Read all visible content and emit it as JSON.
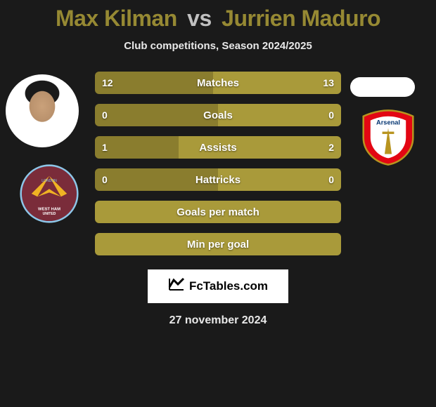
{
  "title": {
    "player1": "Max Kilman",
    "vs": "vs",
    "player2": "Jurrien Maduro",
    "player1_color": "#968933",
    "player2_color": "#968933"
  },
  "subtitle": "Club competitions, Season 2024/2025",
  "club1": {
    "name": "West Ham United",
    "primary": "#7a2c3a",
    "secondary": "#8dc6e8",
    "accent": "#f0b323"
  },
  "club2": {
    "name": "Arsenal",
    "primary": "#e30613",
    "secondary": "#ffffff",
    "accent": "#063672"
  },
  "stats_style": {
    "player1_color": "#8a7d2e",
    "player2_color": "#a99a3a",
    "neutral_color": "#a99a3a",
    "label_color": "#ffffff"
  },
  "stats": [
    {
      "label": "Matches",
      "p1": "12",
      "p2": "13",
      "p1_width_pct": 48
    },
    {
      "label": "Goals",
      "p1": "0",
      "p2": "0",
      "p1_width_pct": 50
    },
    {
      "label": "Assists",
      "p1": "1",
      "p2": "2",
      "p1_width_pct": 34
    },
    {
      "label": "Hattricks",
      "p1": "0",
      "p2": "0",
      "p1_width_pct": 50
    },
    {
      "label": "Goals per match",
      "p1": "",
      "p2": "",
      "p1_width_pct": 0
    },
    {
      "label": "Min per goal",
      "p1": "",
      "p2": "",
      "p1_width_pct": 0
    }
  ],
  "logo_text": "FcTables.com",
  "date": "27 november 2024"
}
